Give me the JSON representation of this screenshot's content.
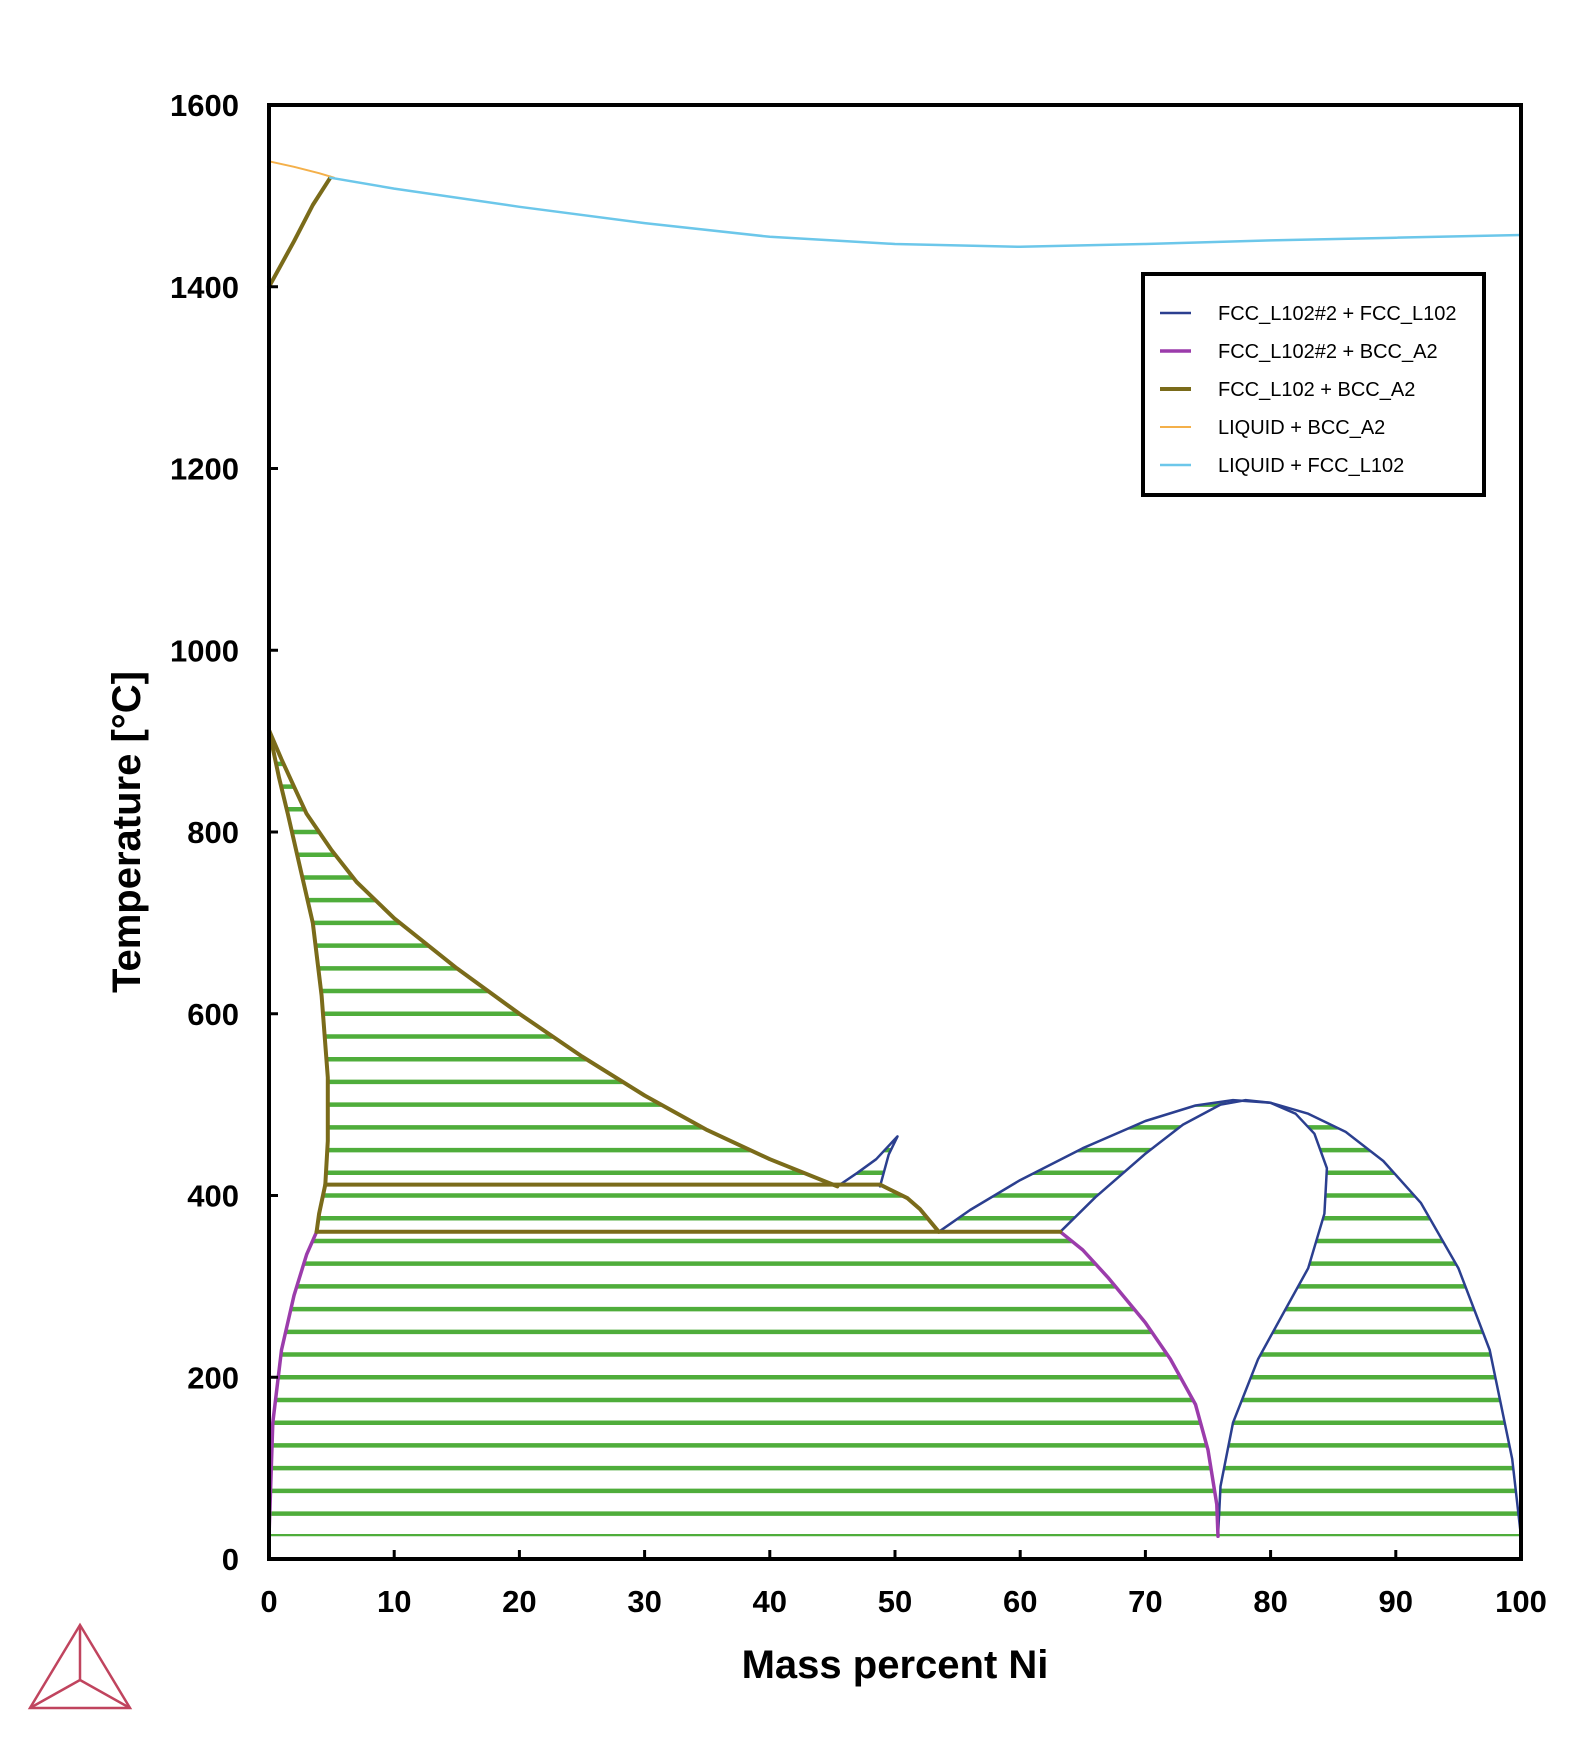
{
  "chart_data": {
    "type": "line",
    "title": "",
    "xlabel": "Mass percent Ni",
    "ylabel": "Temperature [°C]",
    "xlim": [
      0,
      100
    ],
    "ylim": [
      0,
      1600
    ],
    "xticks": [
      0,
      10,
      20,
      30,
      40,
      50,
      60,
      70,
      80,
      90,
      100
    ],
    "yticks": [
      0,
      200,
      400,
      600,
      800,
      1000,
      1200,
      1400,
      1600
    ],
    "grid": false,
    "legend_position": "top-right",
    "tie_line_color": "#4fad3b",
    "series": [
      {
        "name": "FCC_L102#2 + FCC_L102",
        "color": "#2b3f8f",
        "width": 2.5,
        "curves": [
          [
            [
              45.4,
              410
            ],
            [
              47,
              425
            ],
            [
              48.5,
              440
            ],
            [
              50.2,
              465
            ],
            [
              49.5,
              445
            ],
            [
              48.8,
              410
            ]
          ],
          [
            [
              53.5,
              360
            ],
            [
              56,
              384
            ],
            [
              60,
              417
            ],
            [
              65,
              452
            ],
            [
              70,
              482
            ],
            [
              74,
              499
            ],
            [
              77,
              505
            ],
            [
              80,
              502
            ],
            [
              83,
              490
            ],
            [
              86,
              470
            ],
            [
              89,
              438
            ],
            [
              92,
              392
            ],
            [
              95,
              320
            ],
            [
              97.5,
              230
            ],
            [
              99.3,
              110
            ],
            [
              100,
              25
            ]
          ],
          [
            [
              63.2,
              360
            ],
            [
              66,
              398
            ],
            [
              70,
              446
            ],
            [
              73,
              478
            ],
            [
              76,
              500
            ],
            [
              78,
              505
            ],
            [
              80,
              502
            ],
            [
              82,
              490
            ],
            [
              83.5,
              468
            ],
            [
              84.5,
              430
            ],
            [
              84.3,
              380
            ],
            [
              83,
              320
            ],
            [
              81,
              270
            ],
            [
              79,
              220
            ],
            [
              77,
              150
            ],
            [
              76,
              80
            ],
            [
              75.8,
              25
            ]
          ]
        ]
      },
      {
        "name": "FCC_L102#2 + BCC_A2",
        "color": "#9b3cab",
        "width": 3.5,
        "curves": [
          [
            [
              0,
              25
            ],
            [
              0.3,
              150
            ],
            [
              1,
              230
            ],
            [
              2,
              290
            ],
            [
              3,
              335
            ],
            [
              3.8,
              360
            ]
          ],
          [
            [
              63.2,
              360
            ],
            [
              65,
              340
            ],
            [
              67,
              310
            ],
            [
              70,
              260
            ],
            [
              72,
              220
            ],
            [
              74,
              170
            ],
            [
              75,
              120
            ],
            [
              75.7,
              60
            ],
            [
              75.8,
              25
            ]
          ]
        ]
      },
      {
        "name": "FCC_L102 + BCC_A2",
        "color": "#7a6b1a",
        "width": 4,
        "curves": [
          [
            [
              0,
              1400
            ],
            [
              2,
              1450
            ],
            [
              3.5,
              1490
            ],
            [
              4.9,
              1520
            ]
          ],
          [
            [
              0,
              912
            ],
            [
              1,
              880
            ],
            [
              2,
              850
            ],
            [
              3,
              820
            ],
            [
              5,
              780
            ],
            [
              7,
              745
            ],
            [
              10,
              705
            ],
            [
              15,
              650
            ],
            [
              20,
              600
            ],
            [
              25,
              553
            ],
            [
              30,
              510
            ],
            [
              35,
              472
            ],
            [
              40,
              440
            ],
            [
              45.4,
              410
            ]
          ],
          [
            [
              0,
              912
            ],
            [
              0.8,
              860
            ],
            [
              1.5,
              820
            ],
            [
              2.5,
              760
            ],
            [
              3.5,
              700
            ],
            [
              4.2,
              620
            ],
            [
              4.7,
              530
            ],
            [
              4.7,
              460
            ],
            [
              4.5,
              412
            ],
            [
              4,
              380
            ],
            [
              3.8,
              360
            ]
          ],
          [
            [
              4.5,
              412
            ],
            [
              48.8,
              412
            ],
            [
              51,
              397
            ],
            [
              52,
              385
            ],
            [
              53.5,
              360
            ]
          ],
          [
            [
              3.8,
              360
            ],
            [
              63.2,
              360
            ]
          ]
        ]
      },
      {
        "name": "LIQUID + BCC_A2",
        "color": "#f4b04a",
        "width": 2,
        "curves": [
          [
            [
              0,
              1538
            ],
            [
              2,
              1532
            ],
            [
              4,
              1525
            ],
            [
              5.2,
              1520
            ]
          ]
        ]
      },
      {
        "name": "LIQUID + FCC_L102",
        "color": "#6cc7ea",
        "width": 2.5,
        "curves": [
          [
            [
              4.9,
              1520
            ],
            [
              10,
              1508
            ],
            [
              20,
              1488
            ],
            [
              30,
              1470
            ],
            [
              40,
              1455
            ],
            [
              50,
              1447
            ],
            [
              60,
              1444
            ],
            [
              70,
              1447
            ],
            [
              80,
              1451
            ],
            [
              90,
              1454
            ],
            [
              100,
              1457
            ]
          ]
        ]
      }
    ]
  }
}
